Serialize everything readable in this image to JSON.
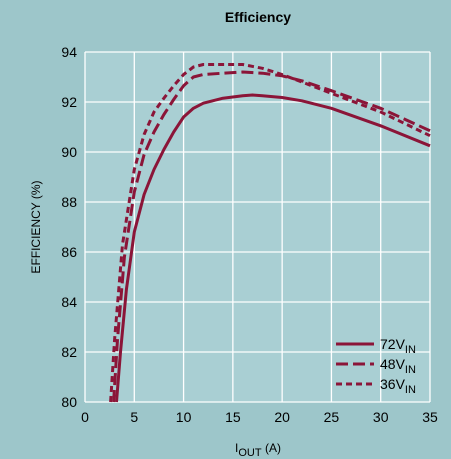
{
  "chart_data": {
    "type": "line",
    "title": "Efficiency",
    "xlabel": {
      "main": "I",
      "sub": "OUT",
      "rest": " (A)"
    },
    "ylabel": "EFFICIENCY (%)",
    "xlim": [
      0,
      35
    ],
    "ylim": [
      80,
      94
    ],
    "xticks": [
      0,
      5,
      10,
      15,
      20,
      25,
      30,
      35
    ],
    "yticks": [
      80,
      82,
      84,
      86,
      88,
      90,
      92,
      94
    ],
    "grid": true,
    "legend_position": "bottom-right",
    "line_color": "#8b1538",
    "background": "#9dc6ca",
    "plot_background": "#a9cfd3",
    "grid_color": "#ffffff",
    "series": [
      {
        "name": {
          "main": "72V",
          "sub": "IN"
        },
        "style": "solid",
        "x": [
          3.2,
          3.6,
          4.2,
          5.0,
          6.0,
          7.0,
          8.0,
          9.0,
          10.0,
          11.0,
          12.0,
          14.0,
          16.0,
          17.0,
          18.0,
          20.0,
          22.0,
          25.0,
          30.0,
          35.0
        ],
        "y": [
          80.0,
          82.0,
          84.5,
          86.8,
          88.3,
          89.3,
          90.1,
          90.8,
          91.4,
          91.75,
          91.95,
          92.15,
          92.25,
          92.28,
          92.25,
          92.18,
          92.05,
          91.75,
          91.05,
          90.25
        ]
      },
      {
        "name": {
          "main": "48V",
          "sub": "IN"
        },
        "style": "long-dash",
        "x": [
          2.9,
          3.3,
          4.0,
          5.0,
          6.0,
          7.0,
          8.0,
          9.0,
          10.0,
          11.0,
          12.0,
          14.0,
          16.0,
          18.0,
          20.0,
          22.0,
          25.0,
          30.0,
          35.0
        ],
        "y": [
          80.0,
          82.5,
          85.8,
          88.4,
          89.9,
          90.8,
          91.5,
          92.1,
          92.65,
          93.0,
          93.1,
          93.15,
          93.2,
          93.15,
          93.05,
          92.85,
          92.45,
          91.75,
          90.85
        ]
      },
      {
        "name": {
          "main": "36V",
          "sub": "IN"
        },
        "style": "short-dash",
        "x": [
          2.6,
          3.0,
          3.8,
          5.0,
          6.0,
          7.0,
          8.0,
          9.0,
          10.0,
          11.0,
          12.0,
          14.0,
          16.0,
          18.0,
          20.0,
          22.0,
          25.0,
          30.0,
          35.0
        ],
        "y": [
          80.0,
          82.5,
          86.3,
          89.3,
          90.7,
          91.6,
          92.15,
          92.65,
          93.1,
          93.4,
          93.5,
          93.5,
          93.5,
          93.35,
          93.1,
          92.8,
          92.35,
          91.6,
          90.65
        ]
      }
    ]
  }
}
